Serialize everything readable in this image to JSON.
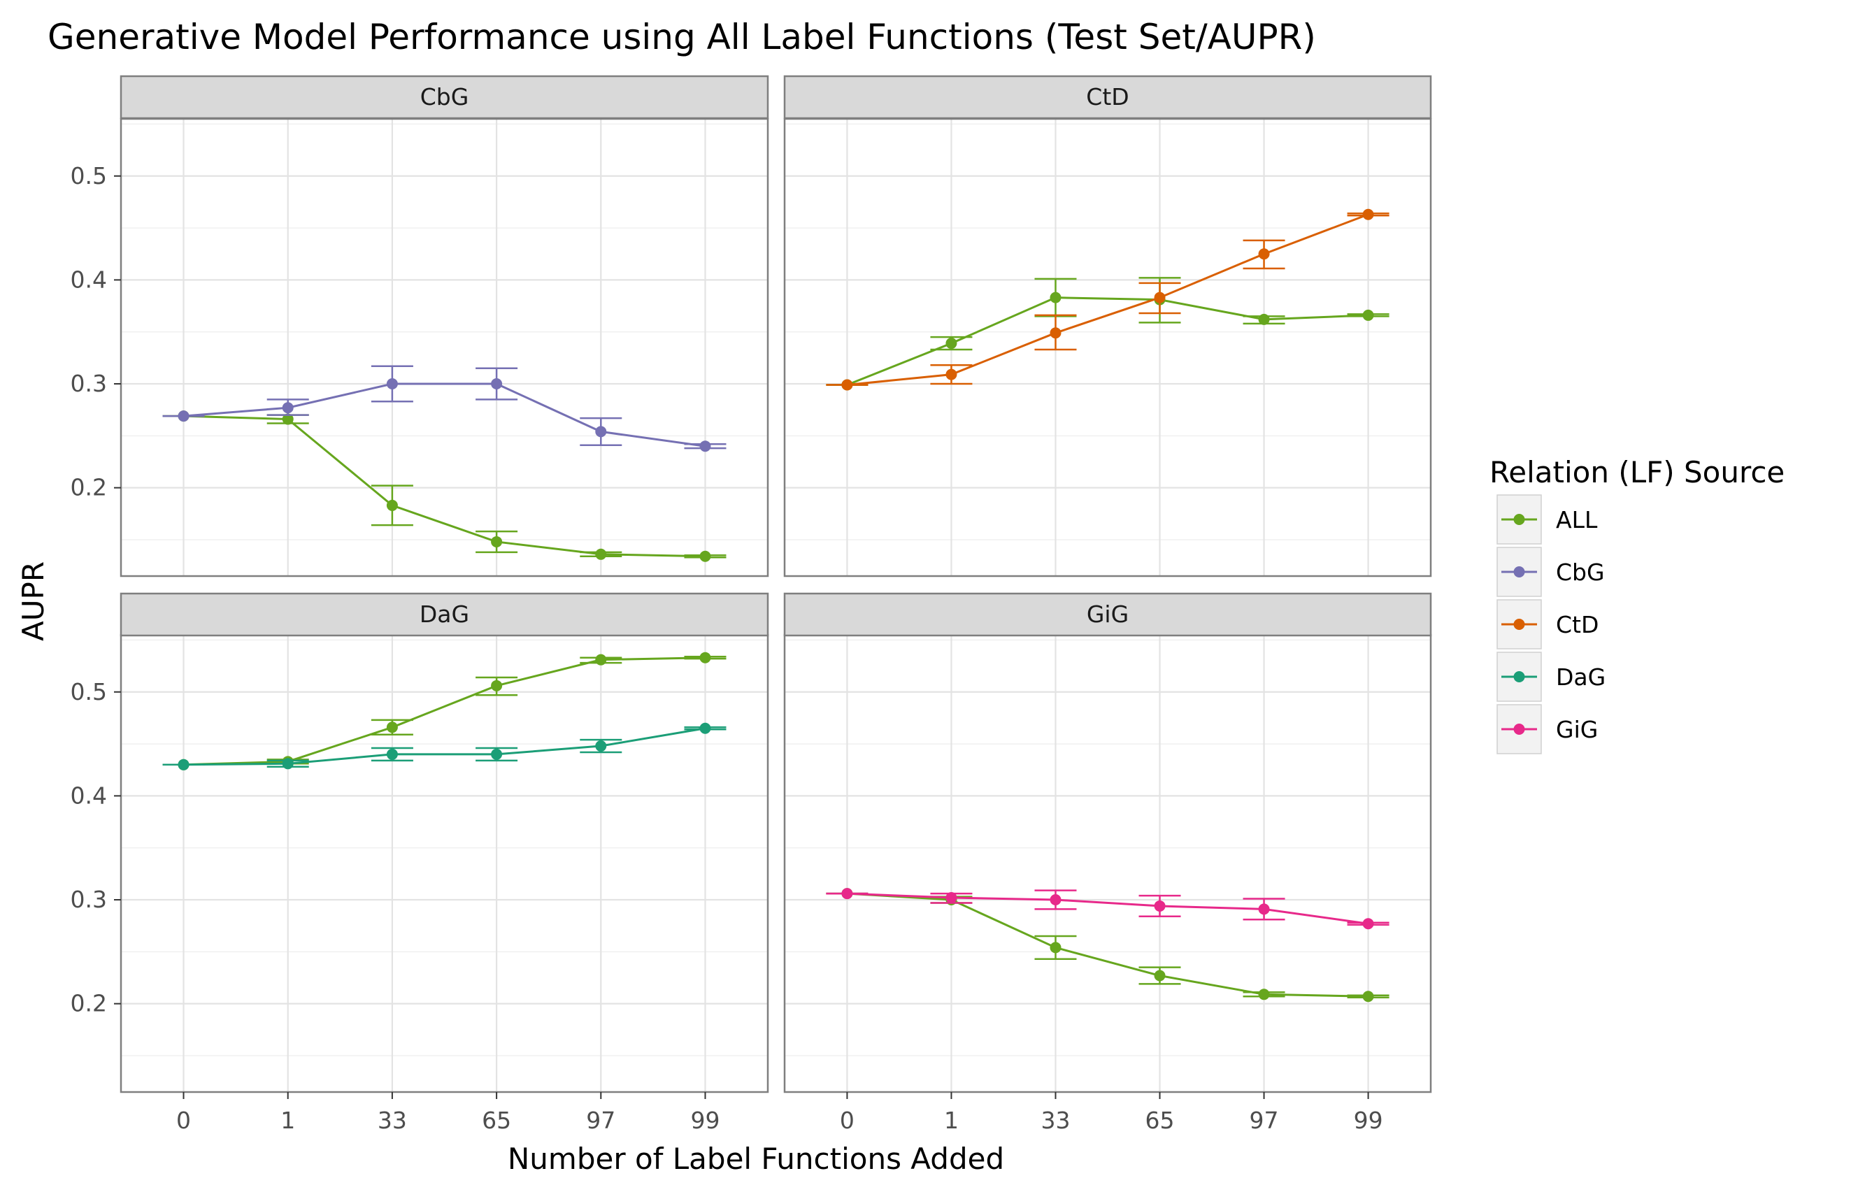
{
  "chart_data": {
    "type": "line",
    "title": "Generative Model Performance using All Label Functions (Test Set/AUPR)",
    "xlabel": "Number of Label Functions Added",
    "ylabel": "AUPR",
    "categories": [
      "0",
      "1",
      "33",
      "65",
      "97",
      "99"
    ],
    "ylim": [
      0.115,
      0.555
    ],
    "yticks": [
      0.2,
      0.3,
      0.4,
      0.5
    ],
    "grid": true,
    "legend": {
      "title": "Relation (LF) Source",
      "position": "right",
      "entries": [
        {
          "name": "ALL",
          "color": "#66a61e"
        },
        {
          "name": "CbG",
          "color": "#7570b3"
        },
        {
          "name": "CtD",
          "color": "#d95f02"
        },
        {
          "name": "DaG",
          "color": "#1b9e77"
        },
        {
          "name": "GiG",
          "color": "#e7298a"
        }
      ]
    },
    "panels": [
      {
        "name": "CbG",
        "series": [
          {
            "name": "ALL",
            "values": [
              0.269,
              0.266,
              0.183,
              0.148,
              0.136,
              0.134
            ],
            "lower": [
              0.269,
              0.262,
              0.164,
              0.138,
              0.134,
              0.133
            ],
            "upper": [
              0.269,
              0.27,
              0.202,
              0.158,
              0.138,
              0.135
            ]
          },
          {
            "name": "CbG",
            "values": [
              0.269,
              0.277,
              0.3,
              0.3,
              0.254,
              0.24
            ],
            "lower": [
              0.269,
              0.27,
              0.283,
              0.285,
              0.241,
              0.238
            ],
            "upper": [
              0.269,
              0.285,
              0.317,
              0.315,
              0.267,
              0.242
            ]
          }
        ]
      },
      {
        "name": "CtD",
        "series": [
          {
            "name": "ALL",
            "values": [
              0.299,
              0.339,
              0.383,
              0.381,
              0.362,
              0.366
            ],
            "lower": [
              0.299,
              0.333,
              0.365,
              0.359,
              0.358,
              0.365
            ],
            "upper": [
              0.299,
              0.345,
              0.401,
              0.402,
              0.365,
              0.367
            ]
          },
          {
            "name": "CtD",
            "values": [
              0.299,
              0.309,
              0.349,
              0.383,
              0.425,
              0.463
            ],
            "lower": [
              0.299,
              0.3,
              0.333,
              0.368,
              0.411,
              0.462
            ],
            "upper": [
              0.299,
              0.318,
              0.366,
              0.397,
              0.438,
              0.464
            ]
          }
        ]
      },
      {
        "name": "DaG",
        "series": [
          {
            "name": "ALL",
            "values": [
              0.43,
              0.433,
              0.466,
              0.506,
              0.531,
              0.533
            ],
            "lower": [
              0.43,
              0.431,
              0.459,
              0.497,
              0.528,
              0.532
            ],
            "upper": [
              0.43,
              0.435,
              0.473,
              0.514,
              0.533,
              0.534
            ]
          },
          {
            "name": "DaG",
            "values": [
              0.43,
              0.431,
              0.44,
              0.44,
              0.448,
              0.465
            ],
            "lower": [
              0.43,
              0.428,
              0.434,
              0.434,
              0.442,
              0.464
            ],
            "upper": [
              0.43,
              0.434,
              0.446,
              0.446,
              0.454,
              0.466
            ]
          }
        ]
      },
      {
        "name": "GiG",
        "series": [
          {
            "name": "ALL",
            "values": [
              0.306,
              0.3,
              0.254,
              0.227,
              0.209,
              0.207
            ],
            "lower": [
              0.306,
              0.297,
              0.243,
              0.219,
              0.207,
              0.206
            ],
            "upper": [
              0.306,
              0.303,
              0.265,
              0.235,
              0.211,
              0.208
            ]
          },
          {
            "name": "GiG",
            "values": [
              0.306,
              0.302,
              0.3,
              0.294,
              0.291,
              0.277
            ],
            "lower": [
              0.306,
              0.297,
              0.291,
              0.284,
              0.281,
              0.276
            ],
            "upper": [
              0.306,
              0.306,
              0.309,
              0.304,
              0.301,
              0.278
            ]
          }
        ]
      }
    ]
  }
}
